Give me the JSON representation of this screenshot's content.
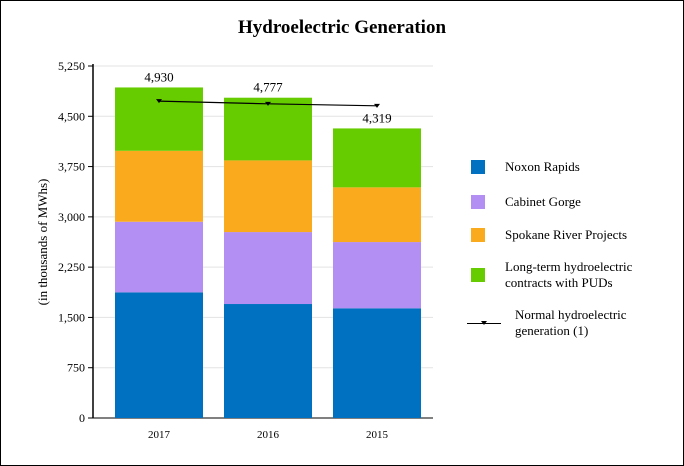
{
  "chart_data": {
    "type": "bar",
    "stacked": true,
    "title": "Hydroelectric Generation",
    "ylabel": "(in thousands of MWhs)",
    "xlabel": "",
    "categories": [
      "2017",
      "2016",
      "2015"
    ],
    "ylim": [
      0,
      5250
    ],
    "yticks": [
      0,
      750,
      1500,
      2250,
      3000,
      3750,
      4500,
      5250
    ],
    "ytick_labels": [
      "0",
      "750",
      "1,500",
      "2,250",
      "3,000",
      "3,750",
      "4,500",
      "5,250"
    ],
    "grid": true,
    "legend_position": "right",
    "series": [
      {
        "name": "Noxon Rapids",
        "color": "#0070c0",
        "values": [
          1874,
          1700,
          1636
        ]
      },
      {
        "name": "Cabinet Gorge",
        "color": "#b38ef3",
        "values": [
          1053,
          1073,
          988
        ]
      },
      {
        "name": "Spokane River Projects",
        "color": "#f9ab1d",
        "values": [
          1058,
          1069,
          816
        ]
      },
      {
        "name": "Long-term hydroelectric contracts with PUDs",
        "color": "#66cc00",
        "values": [
          945,
          935,
          879
        ]
      }
    ],
    "line_series": {
      "name": "Normal hydroelectric generation (1)",
      "color": "#000000",
      "values": [
        4726,
        4686,
        4656
      ]
    },
    "total_labels": [
      "4,930",
      "4,777",
      "4,319"
    ],
    "legend_labels": [
      [
        "Noxon Rapids"
      ],
      [
        "Cabinet Gorge"
      ],
      [
        "Spokane River Projects"
      ],
      [
        "Long-term hydroelectric",
        "contracts with PUDs"
      ],
      [
        "Normal hydroelectric",
        "generation (1)"
      ]
    ]
  }
}
